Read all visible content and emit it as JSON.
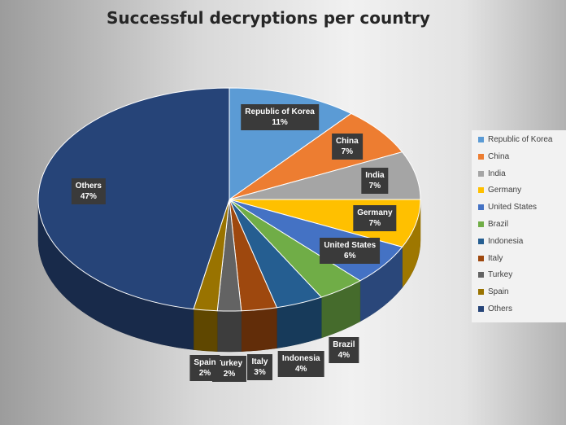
{
  "chart_data": {
    "type": "pie",
    "title": "Successful decryptions per country",
    "categories": [
      "Republic of Korea",
      "China",
      "India",
      "Germany",
      "United States",
      "Brazil",
      "Indonesia",
      "Italy",
      "Turkey",
      "Spain",
      "Others"
    ],
    "values": [
      11,
      7,
      7,
      7,
      6,
      4,
      4,
      3,
      2,
      2,
      47
    ],
    "value_labels": [
      "11%",
      "7%",
      "7%",
      "7%",
      "6%",
      "4%",
      "4%",
      "3%",
      "2%",
      "2%",
      "47%"
    ],
    "colors": [
      "#5b9bd5",
      "#ed7d31",
      "#a5a5a5",
      "#ffc000",
      "#4472c4",
      "#70ad47",
      "#255e91",
      "#9e480e",
      "#636363",
      "#997300",
      "#264478"
    ],
    "legend_position": "right",
    "three_d": true
  }
}
